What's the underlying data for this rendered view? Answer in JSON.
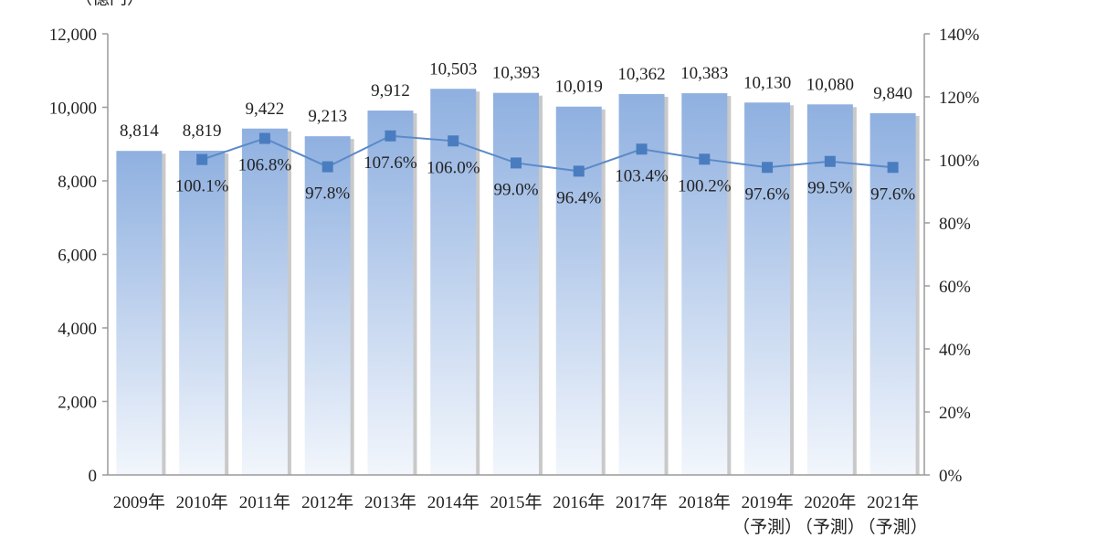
{
  "chart_data": {
    "type": "bar",
    "ylabel": "（億円）",
    "categories": [
      "2009年",
      "2010年",
      "2011年",
      "2012年",
      "2013年",
      "2014年",
      "2015年",
      "2016年",
      "2017年",
      "2018年",
      "2019年",
      "2020年",
      "2021年"
    ],
    "category_sublabels": [
      "",
      "",
      "",
      "",
      "",
      "",
      "",
      "",
      "",
      "",
      "（予測）",
      "（予測）",
      "（予測）"
    ],
    "values": [
      8814,
      8819,
      9422,
      9213,
      9912,
      10503,
      10393,
      10019,
      10362,
      10383,
      10130,
      10080,
      9840
    ],
    "value_labels": [
      "8,814",
      "8,819",
      "9,422",
      "9,213",
      "9,912",
      "10,503",
      "10,393",
      "10,019",
      "10,362",
      "10,383",
      "10,130",
      "10,080",
      "9,840"
    ],
    "ylim": [
      0,
      12000
    ],
    "yticks": [
      "0",
      "2,000",
      "4,000",
      "6,000",
      "8,000",
      "10,000",
      "12,000"
    ],
    "y2lim": [
      0,
      140
    ],
    "y2ticks": [
      "0%",
      "20%",
      "40%",
      "60%",
      "80%",
      "100%",
      "120%",
      "140%"
    ],
    "line_series": {
      "type": "line",
      "axis": "right",
      "values": [
        null,
        100.1,
        106.8,
        97.8,
        107.6,
        106.0,
        99.0,
        96.4,
        103.4,
        100.2,
        97.6,
        99.5,
        97.6
      ],
      "value_labels": [
        "",
        "100.1%",
        "106.8%",
        "97.8%",
        "107.6%",
        "106.0%",
        "99.0%",
        "96.4%",
        "103.4%",
        "100.2%",
        "97.6%",
        "99.5%",
        "97.6%"
      ]
    },
    "colors": {
      "bar_top": "#8fb0e0",
      "bar_bottom": "#f2f6fc",
      "line": "#5b8ac8",
      "marker": "#4a7cc0"
    }
  }
}
